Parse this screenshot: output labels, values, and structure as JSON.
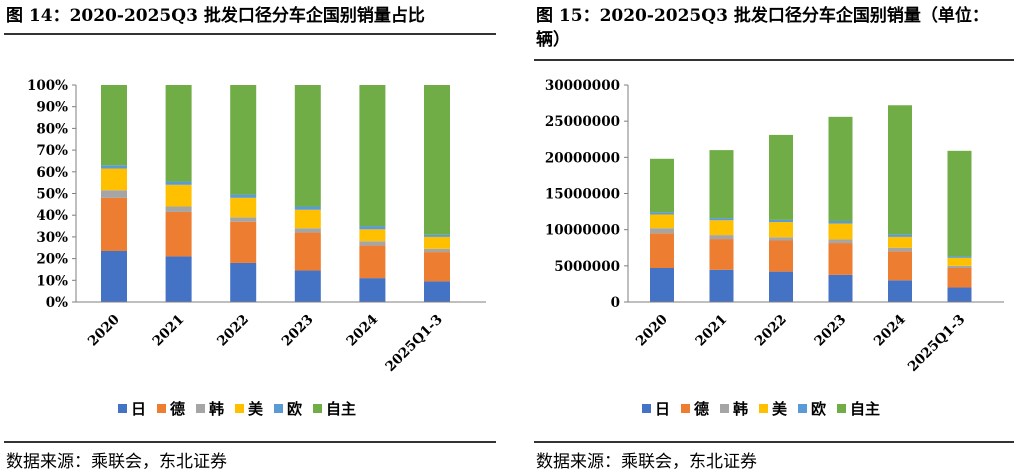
{
  "figure1": {
    "title": "图 14：2020-2025Q3 批发口径分车企国别销量占比",
    "source": "数据来源：乘联会，东北证券",
    "chart_data": {
      "type": "bar",
      "stacked": true,
      "categories": [
        "2020",
        "2021",
        "2022",
        "2023",
        "2024",
        "2025Q1-3"
      ],
      "series": [
        {
          "name": "日",
          "color": "#4472C4",
          "values": [
            23.5,
            21.0,
            18.0,
            14.5,
            11.0,
            9.5
          ]
        },
        {
          "name": "德",
          "color": "#ED7D31",
          "values": [
            24.5,
            20.5,
            19.0,
            17.5,
            15.0,
            13.5
          ]
        },
        {
          "name": "韩",
          "color": "#A5A5A5",
          "values": [
            3.5,
            2.5,
            2.0,
            2.0,
            2.0,
            1.5
          ]
        },
        {
          "name": "美",
          "color": "#FFC000",
          "values": [
            10.0,
            10.0,
            9.0,
            8.5,
            5.5,
            5.5
          ]
        },
        {
          "name": "欧",
          "color": "#5B9BD5",
          "values": [
            1.5,
            1.5,
            1.5,
            1.5,
            1.5,
            1.0
          ]
        },
        {
          "name": "自主",
          "color": "#70AD47",
          "values": [
            37.0,
            44.5,
            50.5,
            56.0,
            65.0,
            69.0
          ]
        }
      ],
      "ylim": [
        0,
        100
      ],
      "yticks": [
        "0%",
        "10%",
        "20%",
        "30%",
        "40%",
        "50%",
        "60%",
        "70%",
        "80%",
        "90%",
        "100%"
      ],
      "legend_position": "bottom"
    }
  },
  "figure2": {
    "title": "图 15：2020-2025Q3 批发口径分车企国别销量（单位：辆）",
    "source": "数据来源：乘联会，东北证券",
    "chart_data": {
      "type": "bar",
      "stacked": true,
      "categories": [
        "2020",
        "2021",
        "2022",
        "2023",
        "2024",
        "2025Q1-3"
      ],
      "series": [
        {
          "name": "日",
          "color": "#4472C4",
          "values": [
            4700000,
            4450000,
            4200000,
            3750000,
            3000000,
            2000000
          ]
        },
        {
          "name": "德",
          "color": "#ED7D31",
          "values": [
            4800000,
            4250000,
            4300000,
            4400000,
            4000000,
            2700000
          ]
        },
        {
          "name": "韩",
          "color": "#A5A5A5",
          "values": [
            700000,
            550000,
            450000,
            500000,
            500000,
            300000
          ]
        },
        {
          "name": "美",
          "color": "#FFC000",
          "values": [
            1900000,
            2050000,
            2100000,
            2200000,
            1500000,
            1100000
          ]
        },
        {
          "name": "欧",
          "color": "#5B9BD5",
          "values": [
            300000,
            300000,
            300000,
            350000,
            350000,
            200000
          ]
        },
        {
          "name": "自主",
          "color": "#70AD47",
          "values": [
            7400000,
            9400000,
            11750000,
            14400000,
            17850000,
            14600000
          ]
        }
      ],
      "ylim": [
        0,
        30000000
      ],
      "yticks": [
        "0",
        "5000000",
        "10000000",
        "15000000",
        "20000000",
        "25000000",
        "30000000"
      ],
      "legend_position": "bottom"
    }
  }
}
